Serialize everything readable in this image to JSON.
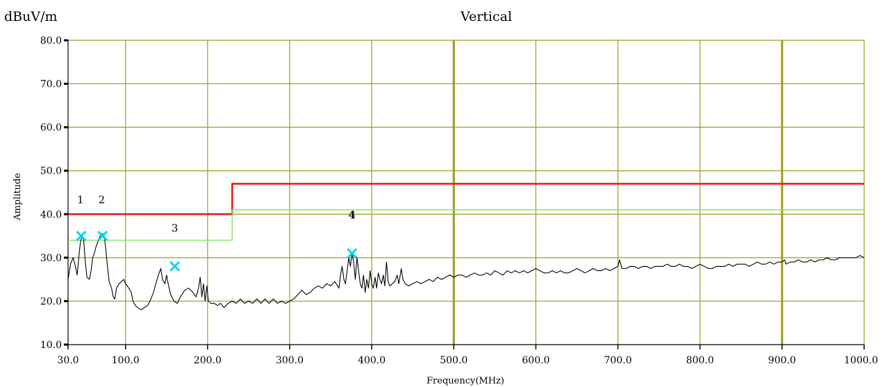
{
  "chart_data": {
    "type": "line",
    "title": "Vertical",
    "unit_label": "dBuV/m",
    "ylabel": "Amplitude",
    "xlabel": "Frequency(MHz)",
    "xlim": [
      30,
      1000
    ],
    "ylim": [
      10,
      80
    ],
    "grid": true,
    "x_ticks": [
      30,
      100,
      200,
      300,
      400,
      500,
      600,
      700,
      800,
      900,
      1000
    ],
    "x_tick_labels": [
      "30.0",
      "100.0",
      "200.0",
      "300.0",
      "400.0",
      "500.0",
      "600.0",
      "700.0",
      "800.0",
      "900.0",
      "1000.0"
    ],
    "y_ticks": [
      10,
      20,
      30,
      40,
      50,
      60,
      70,
      80
    ],
    "y_tick_labels": [
      "10.0",
      "20.0",
      "30.0",
      "40.0",
      "50.0",
      "60.0",
      "70.0",
      "80.0"
    ],
    "colors": {
      "grid": "#9c9c1c",
      "limit": "#ee1111",
      "margin": "#8ee26a",
      "trace": "#000000",
      "marker": "#00d8e8"
    },
    "series": [
      {
        "key": "limit",
        "points": [
          [
            30,
            40
          ],
          [
            230,
            40
          ],
          [
            230,
            47
          ],
          [
            1000,
            47
          ]
        ]
      },
      {
        "key": "margin",
        "points": [
          [
            30,
            34
          ],
          [
            230,
            34
          ],
          [
            230,
            41
          ],
          [
            1000,
            41
          ]
        ]
      },
      {
        "key": "trace",
        "points": [
          [
            30,
            25
          ],
          [
            33,
            28.5
          ],
          [
            36,
            30
          ],
          [
            39,
            28
          ],
          [
            41,
            26
          ],
          [
            43,
            30
          ],
          [
            45,
            33.5
          ],
          [
            47,
            35
          ],
          [
            49,
            34
          ],
          [
            51,
            29
          ],
          [
            53,
            25.5
          ],
          [
            56,
            25
          ],
          [
            58,
            27
          ],
          [
            60,
            30
          ],
          [
            62,
            31
          ],
          [
            64,
            32.5
          ],
          [
            67,
            34
          ],
          [
            69,
            35
          ],
          [
            72,
            35.5
          ],
          [
            74,
            35
          ],
          [
            76,
            32
          ],
          [
            78,
            28
          ],
          [
            80,
            24.5
          ],
          [
            83,
            23
          ],
          [
            85,
            21
          ],
          [
            87,
            20.5
          ],
          [
            89,
            23
          ],
          [
            92,
            24
          ],
          [
            95,
            24.5
          ],
          [
            98,
            25
          ],
          [
            100,
            24
          ],
          [
            102,
            23.5
          ],
          [
            104,
            23
          ],
          [
            107,
            22
          ],
          [
            109,
            20
          ],
          [
            112,
            19
          ],
          [
            115,
            18.5
          ],
          [
            119,
            18
          ],
          [
            123,
            18.5
          ],
          [
            127,
            19
          ],
          [
            131,
            20.5
          ],
          [
            134,
            22
          ],
          [
            137,
            24
          ],
          [
            140,
            26
          ],
          [
            143,
            27.5
          ],
          [
            145,
            25
          ],
          [
            148,
            24
          ],
          [
            150,
            26
          ],
          [
            152,
            24
          ],
          [
            155,
            21.5
          ],
          [
            159,
            20
          ],
          [
            163,
            19.5
          ],
          [
            167,
            21
          ],
          [
            172,
            22.5
          ],
          [
            177,
            23
          ],
          [
            182,
            22
          ],
          [
            186,
            21
          ],
          [
            189,
            23
          ],
          [
            191,
            25.5
          ],
          [
            193,
            21
          ],
          [
            195,
            24
          ],
          [
            197,
            20
          ],
          [
            199,
            23.5
          ],
          [
            201,
            20
          ],
          [
            204,
            19.5
          ],
          [
            208,
            19.5
          ],
          [
            212,
            19
          ],
          [
            216,
            19.5
          ],
          [
            220,
            18.5
          ],
          [
            225,
            19.5
          ],
          [
            230,
            20
          ],
          [
            235,
            19.5
          ],
          [
            240,
            20.5
          ],
          [
            245,
            19.5
          ],
          [
            250,
            20
          ],
          [
            255,
            19.5
          ],
          [
            260,
            20.5
          ],
          [
            265,
            19.5
          ],
          [
            270,
            20.5
          ],
          [
            275,
            19.5
          ],
          [
            280,
            20.5
          ],
          [
            285,
            19.5
          ],
          [
            290,
            20
          ],
          [
            295,
            19.5
          ],
          [
            300,
            20
          ],
          [
            305,
            20.5
          ],
          [
            310,
            21.5
          ],
          [
            315,
            22.5
          ],
          [
            320,
            21.5
          ],
          [
            325,
            22
          ],
          [
            330,
            23
          ],
          [
            335,
            23.5
          ],
          [
            340,
            23
          ],
          [
            345,
            24
          ],
          [
            350,
            23.5
          ],
          [
            355,
            24.5
          ],
          [
            360,
            23
          ],
          [
            362,
            26
          ],
          [
            364,
            28
          ],
          [
            366,
            25
          ],
          [
            368,
            24
          ],
          [
            370,
            27
          ],
          [
            372,
            30
          ],
          [
            374,
            28
          ],
          [
            376,
            31
          ],
          [
            378,
            29
          ],
          [
            380,
            25
          ],
          [
            382,
            30
          ],
          [
            384,
            27
          ],
          [
            386,
            24
          ],
          [
            388,
            23
          ],
          [
            390,
            26
          ],
          [
            392,
            22
          ],
          [
            394,
            25
          ],
          [
            396,
            23
          ],
          [
            398,
            27
          ],
          [
            400,
            24
          ],
          [
            402,
            23
          ],
          [
            404,
            25.5
          ],
          [
            406,
            23
          ],
          [
            408,
            26.5
          ],
          [
            410,
            25
          ],
          [
            412,
            24
          ],
          [
            414,
            26
          ],
          [
            416,
            23.5
          ],
          [
            418,
            29
          ],
          [
            420,
            24.5
          ],
          [
            422,
            23.5
          ],
          [
            425,
            24
          ],
          [
            428,
            24.5
          ],
          [
            431,
            26
          ],
          [
            433,
            24
          ],
          [
            436,
            27.5
          ],
          [
            438,
            25
          ],
          [
            441,
            24
          ],
          [
            445,
            23.5
          ],
          [
            450,
            24
          ],
          [
            455,
            24.5
          ],
          [
            460,
            24
          ],
          [
            465,
            24.5
          ],
          [
            470,
            25
          ],
          [
            475,
            24.5
          ],
          [
            480,
            25.5
          ],
          [
            485,
            25
          ],
          [
            490,
            25.5
          ],
          [
            495,
            26
          ],
          [
            500,
            25.5
          ],
          [
            505,
            26
          ],
          [
            510,
            26
          ],
          [
            515,
            25.5
          ],
          [
            520,
            26
          ],
          [
            525,
            26.5
          ],
          [
            530,
            26
          ],
          [
            535,
            26
          ],
          [
            540,
            26.5
          ],
          [
            545,
            26
          ],
          [
            550,
            27
          ],
          [
            555,
            26.5
          ],
          [
            560,
            26
          ],
          [
            565,
            27
          ],
          [
            570,
            26.5
          ],
          [
            575,
            27
          ],
          [
            580,
            26.5
          ],
          [
            585,
            27
          ],
          [
            590,
            26.5
          ],
          [
            595,
            27
          ],
          [
            600,
            27.5
          ],
          [
            605,
            27
          ],
          [
            610,
            26.5
          ],
          [
            615,
            26.5
          ],
          [
            620,
            27
          ],
          [
            625,
            26.5
          ],
          [
            630,
            27
          ],
          [
            635,
            26.5
          ],
          [
            640,
            26.5
          ],
          [
            645,
            27
          ],
          [
            650,
            27.5
          ],
          [
            655,
            27
          ],
          [
            660,
            26.5
          ],
          [
            665,
            27
          ],
          [
            670,
            27.5
          ],
          [
            675,
            27
          ],
          [
            680,
            27
          ],
          [
            685,
            27.5
          ],
          [
            690,
            27
          ],
          [
            695,
            27.5
          ],
          [
            700,
            28
          ],
          [
            702,
            29.5
          ],
          [
            705,
            27.5
          ],
          [
            710,
            27.5
          ],
          [
            715,
            28
          ],
          [
            720,
            28
          ],
          [
            725,
            27.5
          ],
          [
            730,
            28
          ],
          [
            735,
            28
          ],
          [
            740,
            27.5
          ],
          [
            745,
            28
          ],
          [
            750,
            28
          ],
          [
            755,
            28
          ],
          [
            760,
            28.5
          ],
          [
            765,
            28
          ],
          [
            770,
            28
          ],
          [
            775,
            28.5
          ],
          [
            780,
            28
          ],
          [
            785,
            28
          ],
          [
            790,
            27.5
          ],
          [
            795,
            28
          ],
          [
            800,
            28.5
          ],
          [
            805,
            28
          ],
          [
            810,
            27.5
          ],
          [
            815,
            27.5
          ],
          [
            820,
            28
          ],
          [
            825,
            28
          ],
          [
            830,
            28
          ],
          [
            835,
            28.5
          ],
          [
            840,
            28
          ],
          [
            845,
            28.5
          ],
          [
            850,
            28.5
          ],
          [
            855,
            28.5
          ],
          [
            860,
            28
          ],
          [
            865,
            28.5
          ],
          [
            870,
            29
          ],
          [
            875,
            28.5
          ],
          [
            880,
            28.5
          ],
          [
            885,
            29
          ],
          [
            890,
            28.5
          ],
          [
            895,
            29
          ],
          [
            900,
            29
          ],
          [
            903,
            29.5
          ],
          [
            905,
            28.5
          ],
          [
            910,
            29
          ],
          [
            915,
            29
          ],
          [
            920,
            29.5
          ],
          [
            925,
            29
          ],
          [
            930,
            29
          ],
          [
            935,
            29.5
          ],
          [
            940,
            29
          ],
          [
            945,
            29.5
          ],
          [
            950,
            29.5
          ],
          [
            955,
            30
          ],
          [
            960,
            29.5
          ],
          [
            965,
            29.5
          ],
          [
            970,
            30
          ],
          [
            975,
            30
          ],
          [
            980,
            30
          ],
          [
            985,
            30
          ],
          [
            990,
            30
          ],
          [
            995,
            30.5
          ],
          [
            1000,
            30
          ]
        ]
      }
    ],
    "markers": [
      {
        "x": 46,
        "y": 35
      },
      {
        "x": 72,
        "y": 35
      },
      {
        "x": 160,
        "y": 28
      },
      {
        "x": 376,
        "y": 31
      }
    ],
    "annotations": [
      {
        "text": "1",
        "x": 45,
        "y": 42.5
      },
      {
        "text": "2",
        "x": 71,
        "y": 42.5
      },
      {
        "text": "3",
        "x": 160,
        "y": 36
      },
      {
        "text": "4",
        "x": 376,
        "y": 39
      }
    ]
  }
}
